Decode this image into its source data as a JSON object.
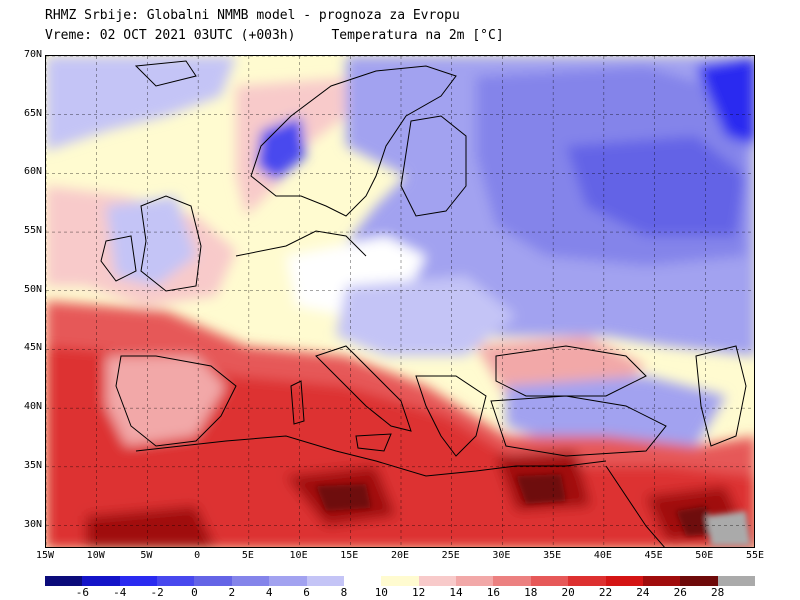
{
  "header": {
    "title": "RHMZ Srbije: Globalni NMMB model - prognoza za Evropu",
    "time_label": "Vreme: 02 OCT 2021 03UTC (+003h)",
    "parameter_label": "Temperatura na 2m [°C]"
  },
  "map": {
    "lat_labels": [
      "70N",
      "65N",
      "60N",
      "55N",
      "50N",
      "45N",
      "40N",
      "35N",
      "30N"
    ],
    "lon_labels": [
      "15W",
      "10W",
      "5W",
      "0",
      "5E",
      "10E",
      "15E",
      "20E",
      "25E",
      "30E",
      "35E",
      "40E",
      "45E",
      "50E",
      "55E"
    ],
    "lat_range": [
      28,
      70
    ],
    "lon_range": [
      -15,
      55
    ],
    "grid": true
  },
  "colorbar": {
    "unit": "°C",
    "tick_labels": [
      "-6",
      "-4",
      "-2",
      "0",
      "2",
      "4",
      "6",
      "8",
      "10",
      "12",
      "14",
      "16",
      "18",
      "20",
      "22",
      "24",
      "26",
      "28"
    ],
    "colors": [
      "#0b0b7a",
      "#1414c8",
      "#2a2af0",
      "#4848ee",
      "#6464e6",
      "#8484ea",
      "#a2a2f0",
      "#c4c4f6",
      "#ffffff",
      "#fffbd0",
      "#f8caca",
      "#f2a8a8",
      "#ec8080",
      "#e65858",
      "#dd3030",
      "#d41414",
      "#a00c0c",
      "#6e0a0a",
      "#aaaaaa"
    ]
  }
}
